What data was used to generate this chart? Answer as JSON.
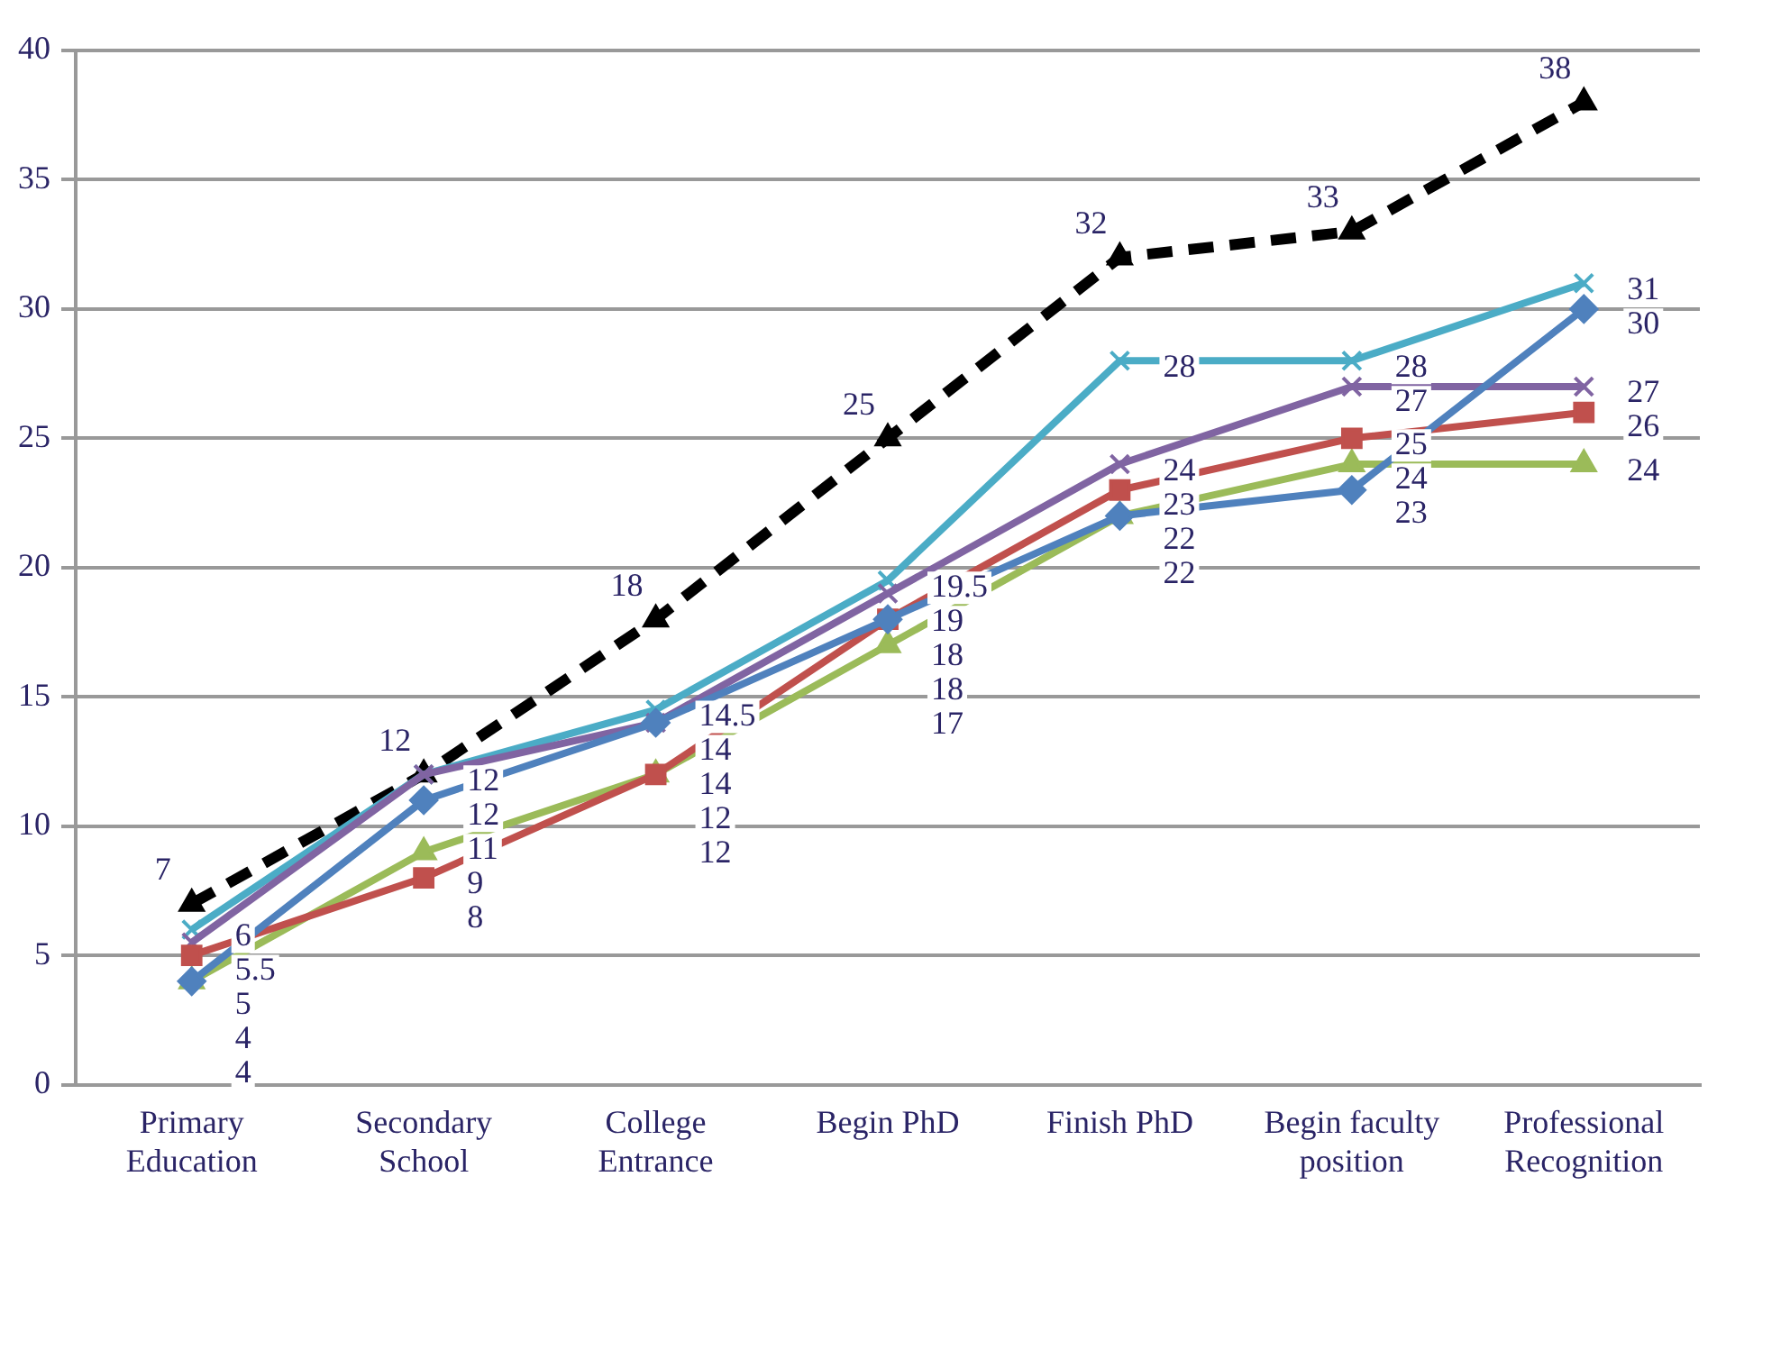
{
  "chart_data": {
    "type": "line",
    "categories": [
      "Primary Education",
      "Secondary School",
      "College Entrance",
      "Begin PhD",
      "Finish PhD",
      "Begin faculty position",
      "Professional Recognition"
    ],
    "series": [
      {
        "color": "#4f81bd",
        "marker": "diamond",
        "line_style": "solid",
        "values": [
          4,
          11,
          14,
          18,
          22,
          23,
          30
        ]
      },
      {
        "color": "#c0504d",
        "marker": "square",
        "line_style": "solid",
        "values": [
          5,
          8,
          12,
          18,
          23,
          25,
          26
        ]
      },
      {
        "color": "#9bbb59",
        "marker": "triangle",
        "line_style": "solid",
        "values": [
          4,
          9,
          12,
          17,
          22,
          24,
          24
        ]
      },
      {
        "color": "#8064a2",
        "marker": "cross",
        "line_style": "solid",
        "values": [
          5.5,
          12,
          14,
          19,
          24,
          27,
          27
        ]
      },
      {
        "color": "#4bacc6",
        "marker": "cross",
        "line_style": "solid",
        "values": [
          6,
          12,
          14.5,
          19.5,
          28,
          28,
          31
        ]
      },
      {
        "color": "#000000",
        "marker": "triangle",
        "line_style": "dashed",
        "values": [
          7,
          12,
          18,
          25,
          32,
          33,
          38
        ]
      }
    ],
    "ylim": [
      0,
      40
    ],
    "yticks": [
      0,
      5,
      10,
      15,
      20,
      25,
      30,
      35,
      40
    ],
    "grid": "y",
    "legend": false,
    "data_labels": true
  }
}
